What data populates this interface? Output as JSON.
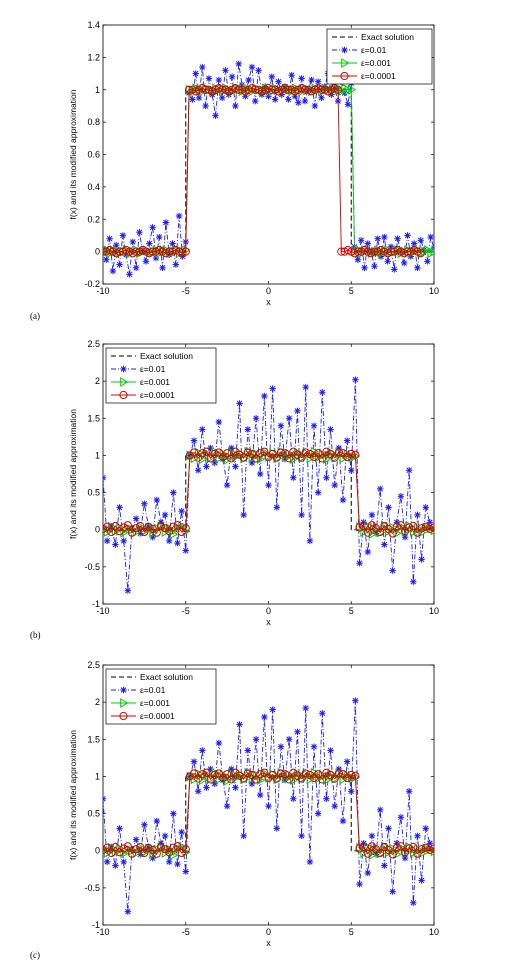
{
  "colors": {
    "exact": "#000000",
    "eps01": "#1a1aff",
    "eps001": "#00cc00",
    "eps0001": "#dd0000",
    "axes": "#000000"
  },
  "chart_data": [
    {
      "panel_label": "(a)",
      "type": "line",
      "xlabel": "x",
      "ylabel": "f(x) and its modified approximation",
      "xlim": [
        -10,
        10
      ],
      "ylim": [
        -0.2,
        1.4
      ],
      "xticks": [
        -10,
        -5,
        0,
        5,
        10
      ],
      "yticks": [
        -0.2,
        0,
        0.2,
        0.4,
        0.6,
        0.8,
        1,
        1.2,
        1.4
      ],
      "legend_position": "top-right",
      "exact_solution": {
        "x": [
          -10,
          -5,
          -5,
          5,
          5,
          10
        ],
        "y": [
          0,
          0,
          1,
          1,
          0,
          0
        ]
      },
      "series": [
        {
          "name": "Exact solution",
          "style": "dashed"
        },
        {
          "name": "ε=0.01",
          "style": "dashdot-star",
          "x_start": -10,
          "x_step": 0.2,
          "values": [
            0.02,
            -0.05,
            0.08,
            -0.12,
            0.04,
            -0.08,
            0.1,
            -0.02,
            -0.14,
            0.06,
            -0.1,
            0.12,
            0.0,
            -0.06,
            0.05,
            0.15,
            -0.04,
            0.09,
            -0.1,
            0.18,
            -0.02,
            0.05,
            -0.08,
            0.22,
            -0.03,
            0.06,
            0.98,
            0.94,
            1.1,
            0.95,
            1.14,
            0.9,
            1.07,
            0.97,
            0.84,
            1.06,
            0.95,
            1.12,
            0.97,
            1.08,
            0.9,
            1.16,
            1.03,
            0.96,
            1.06,
            1.14,
            0.93,
            1.12,
            0.97,
            1.02,
            0.96,
            1.08,
            0.94,
            1.05,
            0.97,
            1.02,
            0.94,
            1.09,
            0.96,
            0.92,
            1.07,
            0.93,
            1.0,
            1.06,
            0.9,
            1.05,
            0.95,
            1.02,
            1.1,
            0.97,
            1.01,
            0.93,
            1.06,
            0.98,
            0.91,
            1.04,
            0.03,
            -0.05,
            0.07,
            -0.1,
            0.05,
            0.0,
            -0.09,
            0.08,
            -0.03,
            0.09,
            -0.06,
            0.03,
            -0.11,
            0.08,
            0.0,
            -0.07,
            0.1,
            -0.03,
            0.05,
            -0.1,
            0.07,
            0.01,
            -0.06,
            0.09,
            0.02
          ]
        },
        {
          "name": "ε=0.001",
          "style": "solid-triangle",
          "x_start": -10,
          "x_step": 0.2,
          "values": [
            0.0,
            0.01,
            -0.01,
            0.0,
            0.01,
            -0.01,
            0.0,
            0.01,
            -0.01,
            0.0,
            0.01,
            -0.01,
            0.0,
            0.01,
            -0.01,
            0.0,
            0.01,
            -0.01,
            0.0,
            0.01,
            -0.01,
            0.0,
            0.01,
            -0.01,
            0.0,
            0.01,
            1.0,
            0.99,
            1.01,
            1.0,
            0.99,
            1.01,
            1.0,
            0.99,
            1.01,
            1.0,
            0.99,
            1.01,
            1.0,
            0.99,
            1.01,
            1.0,
            0.99,
            1.01,
            1.0,
            0.99,
            1.01,
            1.0,
            0.99,
            1.01,
            1.0,
            0.99,
            1.01,
            1.0,
            0.99,
            1.01,
            1.0,
            0.99,
            1.01,
            1.0,
            0.99,
            1.01,
            1.0,
            0.99,
            1.01,
            1.0,
            0.99,
            1.01,
            1.0,
            0.99,
            1.01,
            1.0,
            0.99,
            1.01,
            1.0,
            1.0,
            0.0,
            0.01,
            -0.01,
            0.0,
            0.01,
            -0.01,
            0.0,
            0.01,
            -0.01,
            0.0,
            0.01,
            -0.01,
            0.0,
            0.01,
            -0.01,
            0.0,
            0.01,
            -0.01,
            0.0,
            0.01,
            -0.01,
            0.0,
            0.01,
            -0.01,
            0.0
          ]
        },
        {
          "name": "ε=0.0001",
          "style": "solid-circle",
          "x_start": -10,
          "x_step": 0.2,
          "values": [
            0.0,
            0.0,
            0.01,
            0.0,
            -0.01,
            0.0,
            0.0,
            0.01,
            0.0,
            -0.01,
            0.0,
            0.0,
            0.01,
            0.0,
            -0.01,
            0.0,
            0.0,
            0.01,
            0.0,
            -0.01,
            0.0,
            0.0,
            0.01,
            0.0,
            -0.01,
            0.0,
            1.0,
            1.0,
            0.99,
            1.0,
            1.01,
            1.0,
            1.0,
            0.99,
            1.0,
            1.01,
            1.0,
            1.0,
            0.99,
            1.0,
            1.01,
            1.0,
            1.0,
            0.99,
            1.0,
            1.01,
            1.0,
            1.0,
            0.99,
            1.0,
            1.01,
            1.0,
            1.0,
            0.99,
            1.0,
            1.01,
            1.0,
            1.0,
            0.99,
            1.0,
            1.01,
            1.0,
            1.0,
            0.99,
            1.0,
            1.01,
            1.0,
            1.0,
            0.99,
            1.0,
            1.01,
            1.0,
            0.0,
            0.0,
            0.01,
            0.0,
            -0.01,
            0.0,
            0.0,
            0.01,
            0.0,
            -0.01,
            0.0,
            0.0,
            0.01,
            0.0,
            -0.01,
            0.0,
            0.0,
            0.01,
            0.0,
            -0.01,
            0.0,
            0.0,
            0.01,
            0.0,
            -0.01
          ]
        }
      ]
    },
    {
      "panel_label": "(b)",
      "type": "line",
      "xlabel": "x",
      "ylabel": "f(x) and its modified approximation",
      "xlim": [
        -10,
        10
      ],
      "ylim": [
        -1,
        2.5
      ],
      "xticks": [
        -10,
        -5,
        0,
        5,
        10
      ],
      "yticks": [
        -1,
        -0.5,
        0,
        0.5,
        1,
        1.5,
        2,
        2.5
      ],
      "legend_position": "top-left",
      "exact_solution": {
        "x": [
          -10,
          -5,
          -5,
          5,
          5,
          10
        ],
        "y": [
          0,
          0,
          1,
          1,
          0,
          0
        ]
      },
      "series": [
        {
          "name": "Exact solution",
          "style": "dashed"
        },
        {
          "name": "ε=0.01",
          "style": "dashdot-star",
          "x_start": -10,
          "x_step": 0.25,
          "values": [
            0.7,
            -0.15,
            0.05,
            -0.2,
            0.3,
            -0.15,
            -0.82,
            0.02,
            0.15,
            -0.05,
            0.35,
            0.05,
            -0.1,
            0.4,
            0.1,
            0.2,
            -0.15,
            0.5,
            -0.18,
            0.25,
            -0.28,
            1.0,
            1.2,
            0.8,
            1.35,
            0.85,
            1.1,
            0.9,
            1.45,
            0.95,
            0.6,
            1.1,
            0.85,
            1.7,
            0.2,
            1.35,
            0.9,
            1.5,
            0.75,
            1.8,
            0.6,
            1.9,
            0.3,
            1.4,
            0.95,
            1.5,
            0.7,
            1.6,
            0.2,
            1.92,
            -0.15,
            1.4,
            0.5,
            1.85,
            0.7,
            1.35,
            0.6,
            1.1,
            0.4,
            1.2,
            0.8,
            2.02,
            -0.45,
            0.1,
            -0.3,
            0.2,
            -0.05,
            0.55,
            -0.2,
            0.3,
            -0.55,
            0.1,
            0.45,
            -0.1,
            0.8,
            -0.7,
            0.2,
            -0.4,
            0.3,
            0.1,
            0.0
          ]
        },
        {
          "name": "ε=0.001",
          "style": "solid-triangle",
          "x_start": -10,
          "x_step": 0.25,
          "values": [
            0.02,
            -0.03,
            0.04,
            -0.02,
            0.03,
            -0.04,
            0.02,
            0.0,
            -0.03,
            0.04,
            -0.02,
            0.03,
            -0.05,
            0.02,
            0.04,
            -0.03,
            0.02,
            -0.06,
            0.03,
            0.05,
            -0.02,
            1.0,
            0.96,
            1.04,
            0.95,
            1.03,
            0.97,
            1.05,
            0.96,
            1.02,
            0.94,
            1.04,
            0.98,
            1.03,
            0.96,
            1.05,
            0.97,
            1.02,
            0.95,
            1.04,
            0.98,
            1.03,
            0.96,
            1.05,
            0.97,
            1.02,
            0.95,
            1.04,
            0.97,
            1.03,
            0.96,
            1.05,
            0.97,
            1.02,
            0.95,
            1.04,
            0.97,
            1.03,
            0.96,
            1.02,
            0.98,
            0.99,
            0.04,
            -0.03,
            0.05,
            -0.06,
            0.02,
            -0.04,
            0.06,
            -0.02,
            0.03,
            -0.05,
            0.04,
            -0.02,
            0.05,
            -0.03,
            0.02,
            -0.04,
            0.03,
            0.02,
            -0.01
          ]
        },
        {
          "name": "ε=0.0001",
          "style": "solid-circle",
          "x_start": -10,
          "x_step": 0.25,
          "values": [
            0.01,
            0.04,
            -0.03,
            0.05,
            -0.02,
            0.03,
            0.06,
            -0.04,
            0.02,
            0.05,
            -0.03,
            0.04,
            0.01,
            -0.04,
            0.05,
            0.02,
            -0.02,
            0.04,
            0.06,
            -0.03,
            0.02,
            1.0,
            1.04,
            0.97,
            1.03,
            1.05,
            0.96,
            1.02,
            1.04,
            0.98,
            1.03,
            0.96,
            1.05,
            1.01,
            0.97,
            1.04,
            1.02,
            0.96,
            1.03,
            1.05,
            0.98,
            1.02,
            0.97,
            1.04,
            1.03,
            0.96,
            1.05,
            1.01,
            0.97,
            1.04,
            1.02,
            0.98,
            1.03,
            0.96,
            1.05,
            1.02,
            0.97,
            1.04,
            1.03,
            0.98,
            1.02,
            1.01,
            0.03,
            0.05,
            -0.04,
            0.06,
            0.02,
            -0.03,
            0.05,
            0.01,
            -0.05,
            0.04,
            0.06,
            -0.02,
            0.03,
            0.05,
            -0.04,
            0.02,
            0.04,
            0.01,
            0.03
          ]
        }
      ]
    },
    {
      "panel_label": "(c)",
      "type": "line",
      "xlabel": "x",
      "ylabel": "f(x) and its modified approximation",
      "xlim": [
        -10,
        10
      ],
      "ylim": [
        -1,
        2.5
      ],
      "xticks": [
        -10,
        -5,
        0,
        5,
        10
      ],
      "yticks": [
        -1,
        -0.5,
        0,
        0.5,
        1,
        1.5,
        2,
        2.5
      ],
      "legend_position": "top-left",
      "exact_solution": {
        "x": [
          -10,
          -5,
          -5,
          5,
          5,
          10
        ],
        "y": [
          0,
          0,
          1,
          1,
          0,
          0
        ]
      },
      "series": [
        {
          "name": "Exact solution",
          "style": "dashed"
        },
        {
          "name": "ε=0.01",
          "style": "dashdot-star",
          "x_start": -10,
          "x_step": 0.25,
          "values": [
            0.7,
            -0.15,
            0.05,
            -0.2,
            0.3,
            -0.15,
            -0.82,
            0.02,
            0.15,
            -0.05,
            0.35,
            0.05,
            -0.1,
            0.4,
            0.1,
            0.2,
            -0.15,
            0.5,
            -0.18,
            0.25,
            -0.28,
            1.0,
            1.2,
            0.8,
            1.35,
            0.85,
            1.1,
            0.9,
            1.45,
            0.95,
            0.6,
            1.1,
            0.85,
            1.7,
            0.2,
            1.35,
            0.9,
            1.5,
            0.75,
            1.8,
            0.6,
            1.9,
            0.3,
            1.4,
            0.95,
            1.5,
            0.7,
            1.6,
            0.2,
            1.92,
            -0.15,
            1.4,
            0.5,
            1.85,
            0.7,
            1.35,
            0.6,
            1.1,
            0.4,
            1.2,
            0.8,
            2.02,
            -0.45,
            0.1,
            -0.3,
            0.2,
            -0.05,
            0.55,
            -0.2,
            0.3,
            -0.55,
            0.1,
            0.45,
            -0.1,
            0.8,
            -0.7,
            0.2,
            -0.4,
            0.3,
            0.1,
            0.0
          ]
        },
        {
          "name": "ε=0.001",
          "style": "solid-triangle",
          "x_start": -10,
          "x_step": 0.25,
          "values": [
            0.02,
            -0.03,
            0.04,
            -0.02,
            0.03,
            -0.04,
            0.02,
            0.0,
            -0.03,
            0.04,
            -0.02,
            0.03,
            -0.05,
            0.02,
            0.04,
            -0.03,
            0.02,
            -0.06,
            0.03,
            0.05,
            -0.02,
            1.0,
            0.96,
            1.04,
            0.95,
            1.03,
            0.97,
            1.05,
            0.96,
            1.02,
            0.94,
            1.04,
            0.98,
            1.03,
            0.96,
            1.05,
            0.97,
            1.02,
            0.95,
            1.04,
            0.98,
            1.03,
            0.96,
            1.05,
            0.97,
            1.02,
            0.95,
            1.04,
            0.97,
            1.03,
            0.96,
            1.05,
            0.97,
            1.02,
            0.95,
            1.04,
            0.97,
            1.03,
            0.96,
            1.02,
            0.98,
            0.99,
            0.04,
            -0.03,
            0.05,
            -0.06,
            0.02,
            -0.04,
            0.06,
            -0.02,
            0.03,
            -0.05,
            0.04,
            -0.02,
            0.05,
            -0.03,
            0.02,
            -0.04,
            0.03,
            0.02,
            -0.01
          ]
        },
        {
          "name": "ε=0.0001",
          "style": "solid-circle",
          "x_start": -10,
          "x_step": 0.25,
          "values": [
            0.01,
            0.04,
            -0.03,
            0.05,
            -0.02,
            0.03,
            0.06,
            -0.04,
            0.02,
            0.05,
            -0.03,
            0.04,
            0.01,
            -0.04,
            0.05,
            0.02,
            -0.02,
            0.04,
            0.06,
            -0.03,
            0.02,
            1.0,
            1.04,
            0.97,
            1.03,
            1.05,
            0.96,
            1.02,
            1.04,
            0.98,
            1.03,
            0.96,
            1.05,
            1.01,
            0.97,
            1.04,
            1.02,
            0.96,
            1.03,
            1.05,
            0.98,
            1.02,
            0.97,
            1.04,
            1.03,
            0.96,
            1.05,
            1.01,
            0.97,
            1.04,
            1.02,
            0.98,
            1.03,
            0.96,
            1.05,
            1.02,
            0.97,
            1.04,
            1.03,
            0.98,
            1.02,
            1.01,
            0.03,
            0.05,
            -0.04,
            0.06,
            0.02,
            -0.03,
            0.05,
            0.01,
            -0.05,
            0.04,
            0.06,
            -0.02,
            0.03,
            0.05,
            -0.04,
            0.02,
            0.04,
            0.01,
            0.03
          ]
        }
      ]
    }
  ]
}
